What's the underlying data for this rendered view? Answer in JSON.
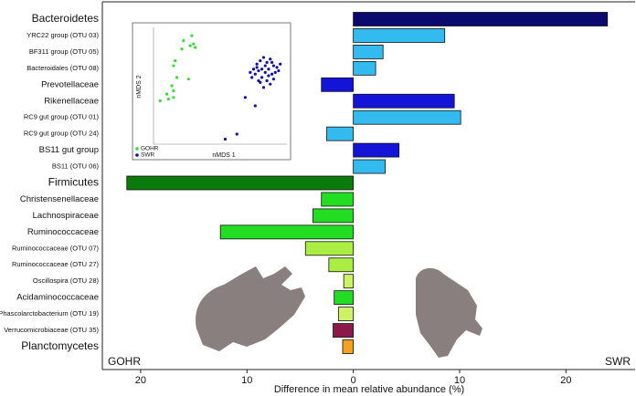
{
  "chart_data": [
    {
      "type": "barh",
      "xlabel": "Difference in mean relative abundance (%)",
      "left_label": "GOHR",
      "right_label": "SWR",
      "categories": [
        "Bacteroidetes",
        "YRC22 group (OTU 03)",
        "BF311 group (OTU 05)",
        "Bacteroidales (OTU 08)",
        "Prevotellaceae",
        "Rikenellaceae",
        "RC9 gut group (OTU 01)",
        "RC9 gut group (OTU 24)",
        "BS11 gut group",
        "BS11 (OTU 06)",
        "Firmicutes",
        "Christensenellaceae",
        "Lachnospiraceae",
        "Ruminococcaceae",
        "Ruminococcaceae (OTU 07)",
        "Ruminococcaceae (OTU 27)",
        "Oscillospira (OTU 28)",
        "Acidaminococcaceae",
        "Phascolarctobacterium (OTU 19)",
        "Verrucomicrobiaceae (OTU 35)",
        "Planctomycetes"
      ],
      "values": [
        23.9,
        8.6,
        2.8,
        2.1,
        -3.0,
        9.5,
        10.1,
        -2.5,
        4.3,
        3.0,
        -21.3,
        -3.0,
        -3.8,
        -12.5,
        -4.5,
        -2.3,
        -0.9,
        -1.8,
        -1.4,
        -1.9,
        -1.0
      ],
      "colors": [
        "#0a0a6e",
        "#33bbf0",
        "#33bbf0",
        "#33bbf0",
        "#1414d8",
        "#1414d8",
        "#33bbf0",
        "#33bbf0",
        "#1414d8",
        "#33bbf0",
        "#0a7a0a",
        "#22dd22",
        "#22dd22",
        "#22dd22",
        "#aaee44",
        "#aaee44",
        "#ccf266",
        "#22dd22",
        "#ccf266",
        "#8b1a4a",
        "#f5a020"
      ],
      "xlim": [
        -23.6,
        26.5
      ],
      "xticks": [
        {
          "value": -20,
          "label": "20"
        },
        {
          "value": -10,
          "label": "10"
        },
        0,
        10,
        20
      ]
    },
    {
      "type": "scatter",
      "xlabel": "nMDS 1",
      "ylabel": "nMDS 2",
      "xlim": [
        -0.4,
        0.4
      ],
      "ylim": [
        -0.4,
        0.3
      ],
      "series": [
        {
          "name": "GOHR",
          "color": "#33dd33",
          "x": [
            -0.17,
            -0.16,
            -0.15,
            -0.22,
            -0.23,
            -0.27,
            -0.28,
            -0.26,
            -0.19,
            -0.29,
            -0.28,
            -0.28,
            -0.31,
            -0.36,
            -0.32,
            -0.18
          ],
          "values": [
            0.25,
            0.2,
            0.18,
            0.22,
            0.17,
            0.1,
            0.07,
            0.0,
            -0.01,
            -0.05,
            -0.08,
            -0.12,
            -0.13,
            -0.14,
            -0.1,
            0.19
          ]
        },
        {
          "name": "SWR",
          "color": "#1010a8",
          "x": [
            0.2,
            0.22,
            0.24,
            0.26,
            0.28,
            0.3,
            0.32,
            0.34,
            0.36,
            0.21,
            0.23,
            0.25,
            0.27,
            0.29,
            0.31,
            0.33,
            0.19,
            0.24,
            0.28,
            0.3,
            0.26,
            0.22,
            0.32,
            0.35,
            0.27,
            0.25,
            0.29,
            0.23,
            0.31,
            0.18,
            0.15,
            0.21,
            0.1,
            0.03
          ],
          "values": [
            0.05,
            0.08,
            0.1,
            0.12,
            0.09,
            0.11,
            0.07,
            0.06,
            0.08,
            0.02,
            0.04,
            0.0,
            0.03,
            0.05,
            0.02,
            0.03,
            0.0,
            -0.03,
            -0.02,
            -0.04,
            -0.06,
            0.06,
            -0.01,
            0.04,
            0.07,
            0.05,
            0.01,
            -0.02,
            0.09,
            0.03,
            -0.12,
            -0.17,
            -0.34,
            -0.37
          ]
        }
      ]
    }
  ]
}
